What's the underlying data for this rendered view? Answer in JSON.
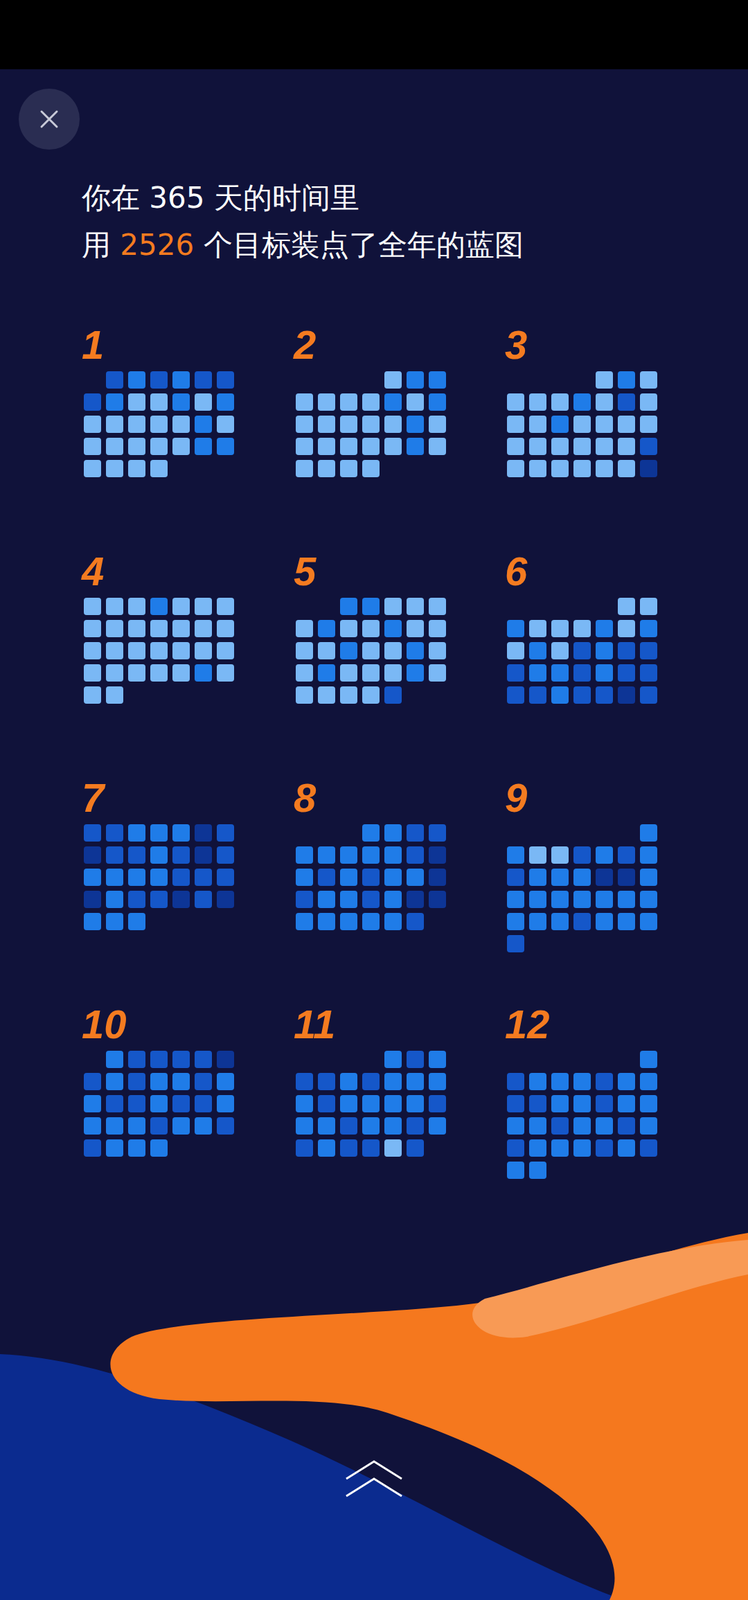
{
  "chart_data": {
    "type": "calendar_heatmap",
    "title": {
      "line1": [
        "你在 ",
        365,
        " 天的时间里"
      ],
      "line2": [
        "用 ",
        2526,
        " 个目标装点了全年的蓝图"
      ]
    },
    "tick_labels": false,
    "color_levels": [
      1,
      2,
      3,
      4
    ],
    "colors": [
      "#0d3596",
      "#1557c9",
      "#1f7ce8",
      "#7ab8f5"
    ],
    "months": [
      {
        "label": "1",
        "values": [
          null,
          2,
          3,
          2,
          3,
          2,
          2,
          2,
          3,
          4,
          4,
          3,
          4,
          3,
          4,
          4,
          4,
          4,
          4,
          3,
          4,
          4,
          4,
          4,
          4,
          4,
          3,
          3,
          4,
          4,
          4,
          4
        ]
      },
      {
        "label": "2",
        "values": [
          null,
          null,
          null,
          null,
          4,
          3,
          3,
          4,
          4,
          4,
          4,
          3,
          4,
          3,
          4,
          4,
          4,
          4,
          4,
          3,
          4,
          4,
          4,
          4,
          4,
          4,
          3,
          4,
          4,
          4,
          4,
          4
        ]
      },
      {
        "label": "3",
        "values": [
          null,
          null,
          null,
          null,
          4,
          3,
          4,
          4,
          4,
          4,
          3,
          4,
          2,
          4,
          4,
          4,
          3,
          4,
          4,
          4,
          4,
          4,
          4,
          4,
          4,
          4,
          4,
          2,
          4,
          4,
          4,
          4,
          4,
          4,
          1
        ]
      },
      {
        "label": "4",
        "values": [
          4,
          4,
          4,
          3,
          4,
          4,
          4,
          4,
          4,
          4,
          4,
          4,
          4,
          4,
          4,
          4,
          4,
          4,
          4,
          4,
          4,
          4,
          4,
          4,
          4,
          4,
          3,
          4,
          4,
          4
        ]
      },
      {
        "label": "5",
        "values": [
          null,
          null,
          3,
          3,
          4,
          4,
          4,
          4,
          3,
          4,
          4,
          3,
          4,
          4,
          4,
          4,
          3,
          4,
          4,
          3,
          4,
          4,
          3,
          4,
          4,
          4,
          3,
          4,
          4,
          4,
          4,
          4,
          2
        ]
      },
      {
        "label": "6",
        "values": [
          null,
          null,
          null,
          null,
          null,
          4,
          4,
          3,
          4,
          4,
          4,
          3,
          4,
          3,
          4,
          3,
          4,
          2,
          3,
          2,
          2,
          2,
          3,
          3,
          2,
          3,
          2,
          2,
          2,
          2,
          3,
          2,
          2,
          1,
          2
        ]
      },
      {
        "label": "7",
        "values": [
          2,
          2,
          3,
          3,
          3,
          1,
          2,
          1,
          2,
          2,
          3,
          2,
          1,
          2,
          3,
          3,
          3,
          3,
          2,
          2,
          2,
          1,
          3,
          2,
          2,
          1,
          2,
          1,
          3,
          3,
          3
        ]
      },
      {
        "label": "8",
        "values": [
          null,
          null,
          null,
          3,
          3,
          2,
          2,
          3,
          3,
          3,
          3,
          3,
          2,
          1,
          3,
          2,
          3,
          2,
          3,
          3,
          1,
          2,
          3,
          3,
          2,
          3,
          1,
          1,
          3,
          3,
          3,
          3,
          3,
          2
        ]
      },
      {
        "label": "9",
        "values": [
          null,
          null,
          null,
          null,
          null,
          null,
          3,
          3,
          4,
          4,
          2,
          3,
          2,
          3,
          2,
          3,
          3,
          3,
          1,
          1,
          3,
          3,
          3,
          3,
          3,
          3,
          3,
          3,
          3,
          3,
          3,
          2,
          3,
          3,
          3,
          2
        ]
      },
      {
        "label": "10",
        "values": [
          null,
          3,
          2,
          2,
          2,
          2,
          1,
          2,
          3,
          2,
          3,
          3,
          2,
          3,
          3,
          2,
          2,
          3,
          2,
          2,
          3,
          3,
          3,
          3,
          2,
          3,
          3,
          2,
          2,
          3,
          3,
          3
        ]
      },
      {
        "label": "11",
        "values": [
          null,
          null,
          null,
          null,
          3,
          2,
          3,
          2,
          2,
          3,
          2,
          3,
          3,
          3,
          3,
          2,
          3,
          3,
          3,
          3,
          2,
          3,
          3,
          2,
          3,
          3,
          2,
          3,
          2,
          3,
          2,
          2,
          4,
          2
        ]
      },
      {
        "label": "12",
        "values": [
          null,
          null,
          null,
          null,
          null,
          null,
          3,
          2,
          3,
          3,
          3,
          2,
          3,
          3,
          2,
          2,
          3,
          3,
          2,
          3,
          3,
          3,
          3,
          2,
          3,
          3,
          2,
          3,
          2,
          3,
          3,
          3,
          2,
          3,
          2,
          3,
          3
        ]
      }
    ]
  }
}
